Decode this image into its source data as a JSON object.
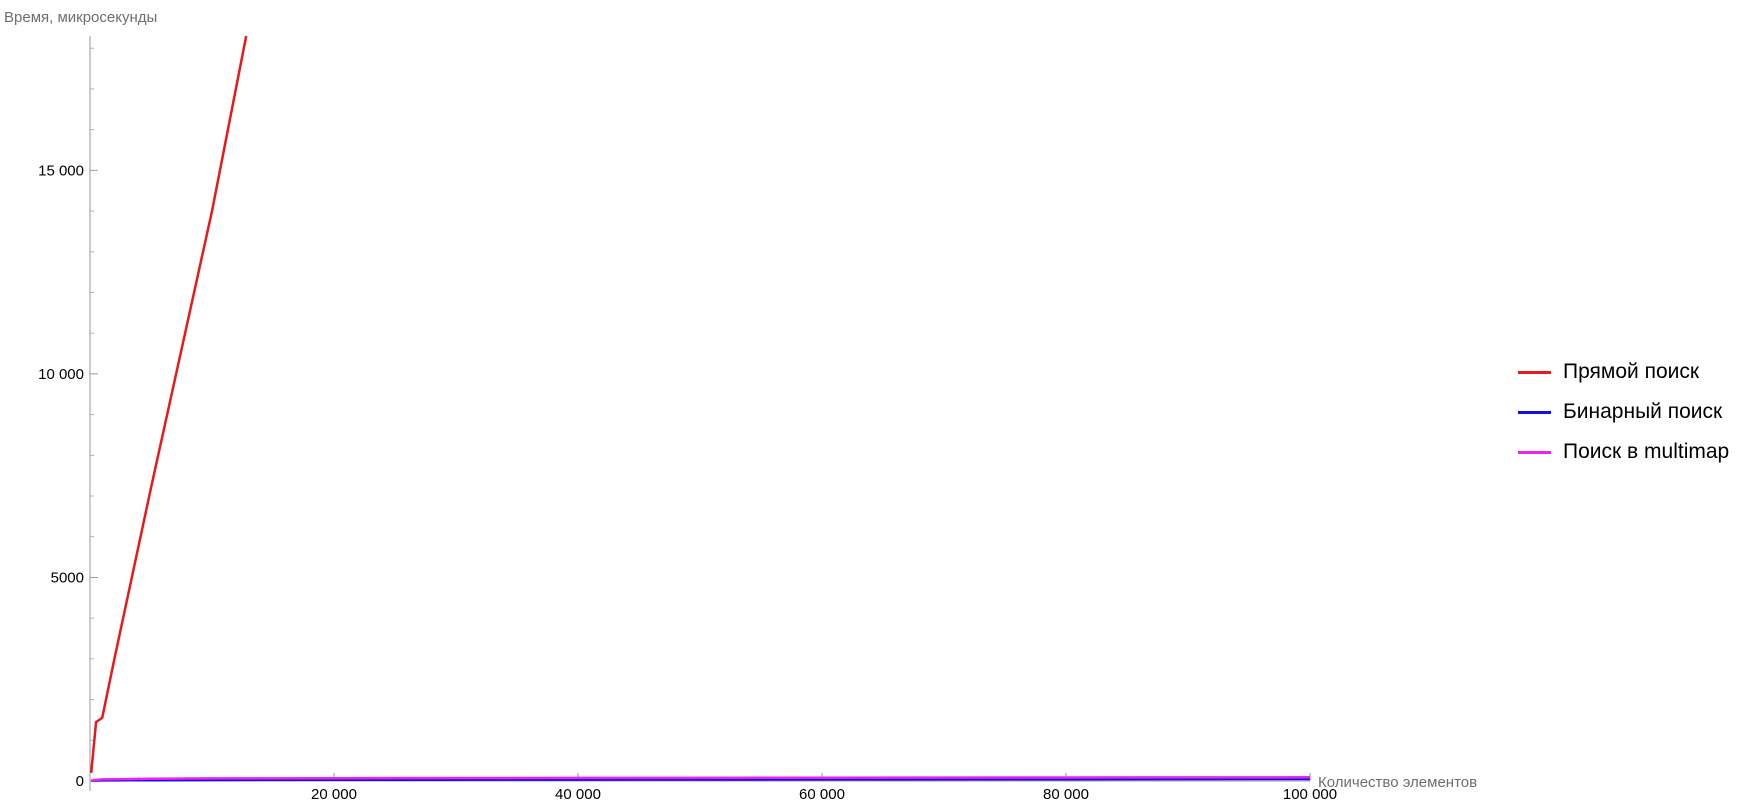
{
  "chart_data": {
    "type": "line",
    "xlabel": "Количество элементов",
    "ylabel": "Время, микросекунды",
    "xlim": [
      0,
      100000
    ],
    "ylim": [
      0,
      18300
    ],
    "x_ticks": [
      {
        "value": 20000,
        "label": "20 000"
      },
      {
        "value": 40000,
        "label": "40 000"
      },
      {
        "value": 60000,
        "label": "60 000"
      },
      {
        "value": 80000,
        "label": "80 000"
      },
      {
        "value": 100000,
        "label": "100 000"
      }
    ],
    "y_ticks": [
      {
        "value": 0,
        "label": "0"
      },
      {
        "value": 5000,
        "label": "5000"
      },
      {
        "value": 10000,
        "label": "10 000"
      },
      {
        "value": 15000,
        "label": "15 000"
      }
    ],
    "grid": false,
    "legend_position": "right",
    "series": [
      {
        "name": "Прямой поиск",
        "color": "#e41a1c",
        "x": [
          100,
          500,
          1000,
          2000,
          5000,
          10000,
          12800
        ],
        "y": [
          200,
          1450,
          1550,
          3000,
          7200,
          14000,
          18300
        ]
      },
      {
        "name": "Бинарный поиск",
        "color": "#1010e0",
        "x": [
          100,
          1000,
          5000,
          10000,
          20000,
          40000,
          60000,
          80000,
          100000
        ],
        "y": [
          5,
          15,
          20,
          25,
          30,
          35,
          40,
          45,
          50
        ]
      },
      {
        "name": "Поиск в multimap",
        "color": "#ee22ee",
        "x": [
          100,
          1000,
          5000,
          10000,
          20000,
          40000,
          60000,
          80000,
          100000
        ],
        "y": [
          10,
          40,
          55,
          65,
          70,
          75,
          80,
          85,
          90
        ]
      }
    ]
  }
}
